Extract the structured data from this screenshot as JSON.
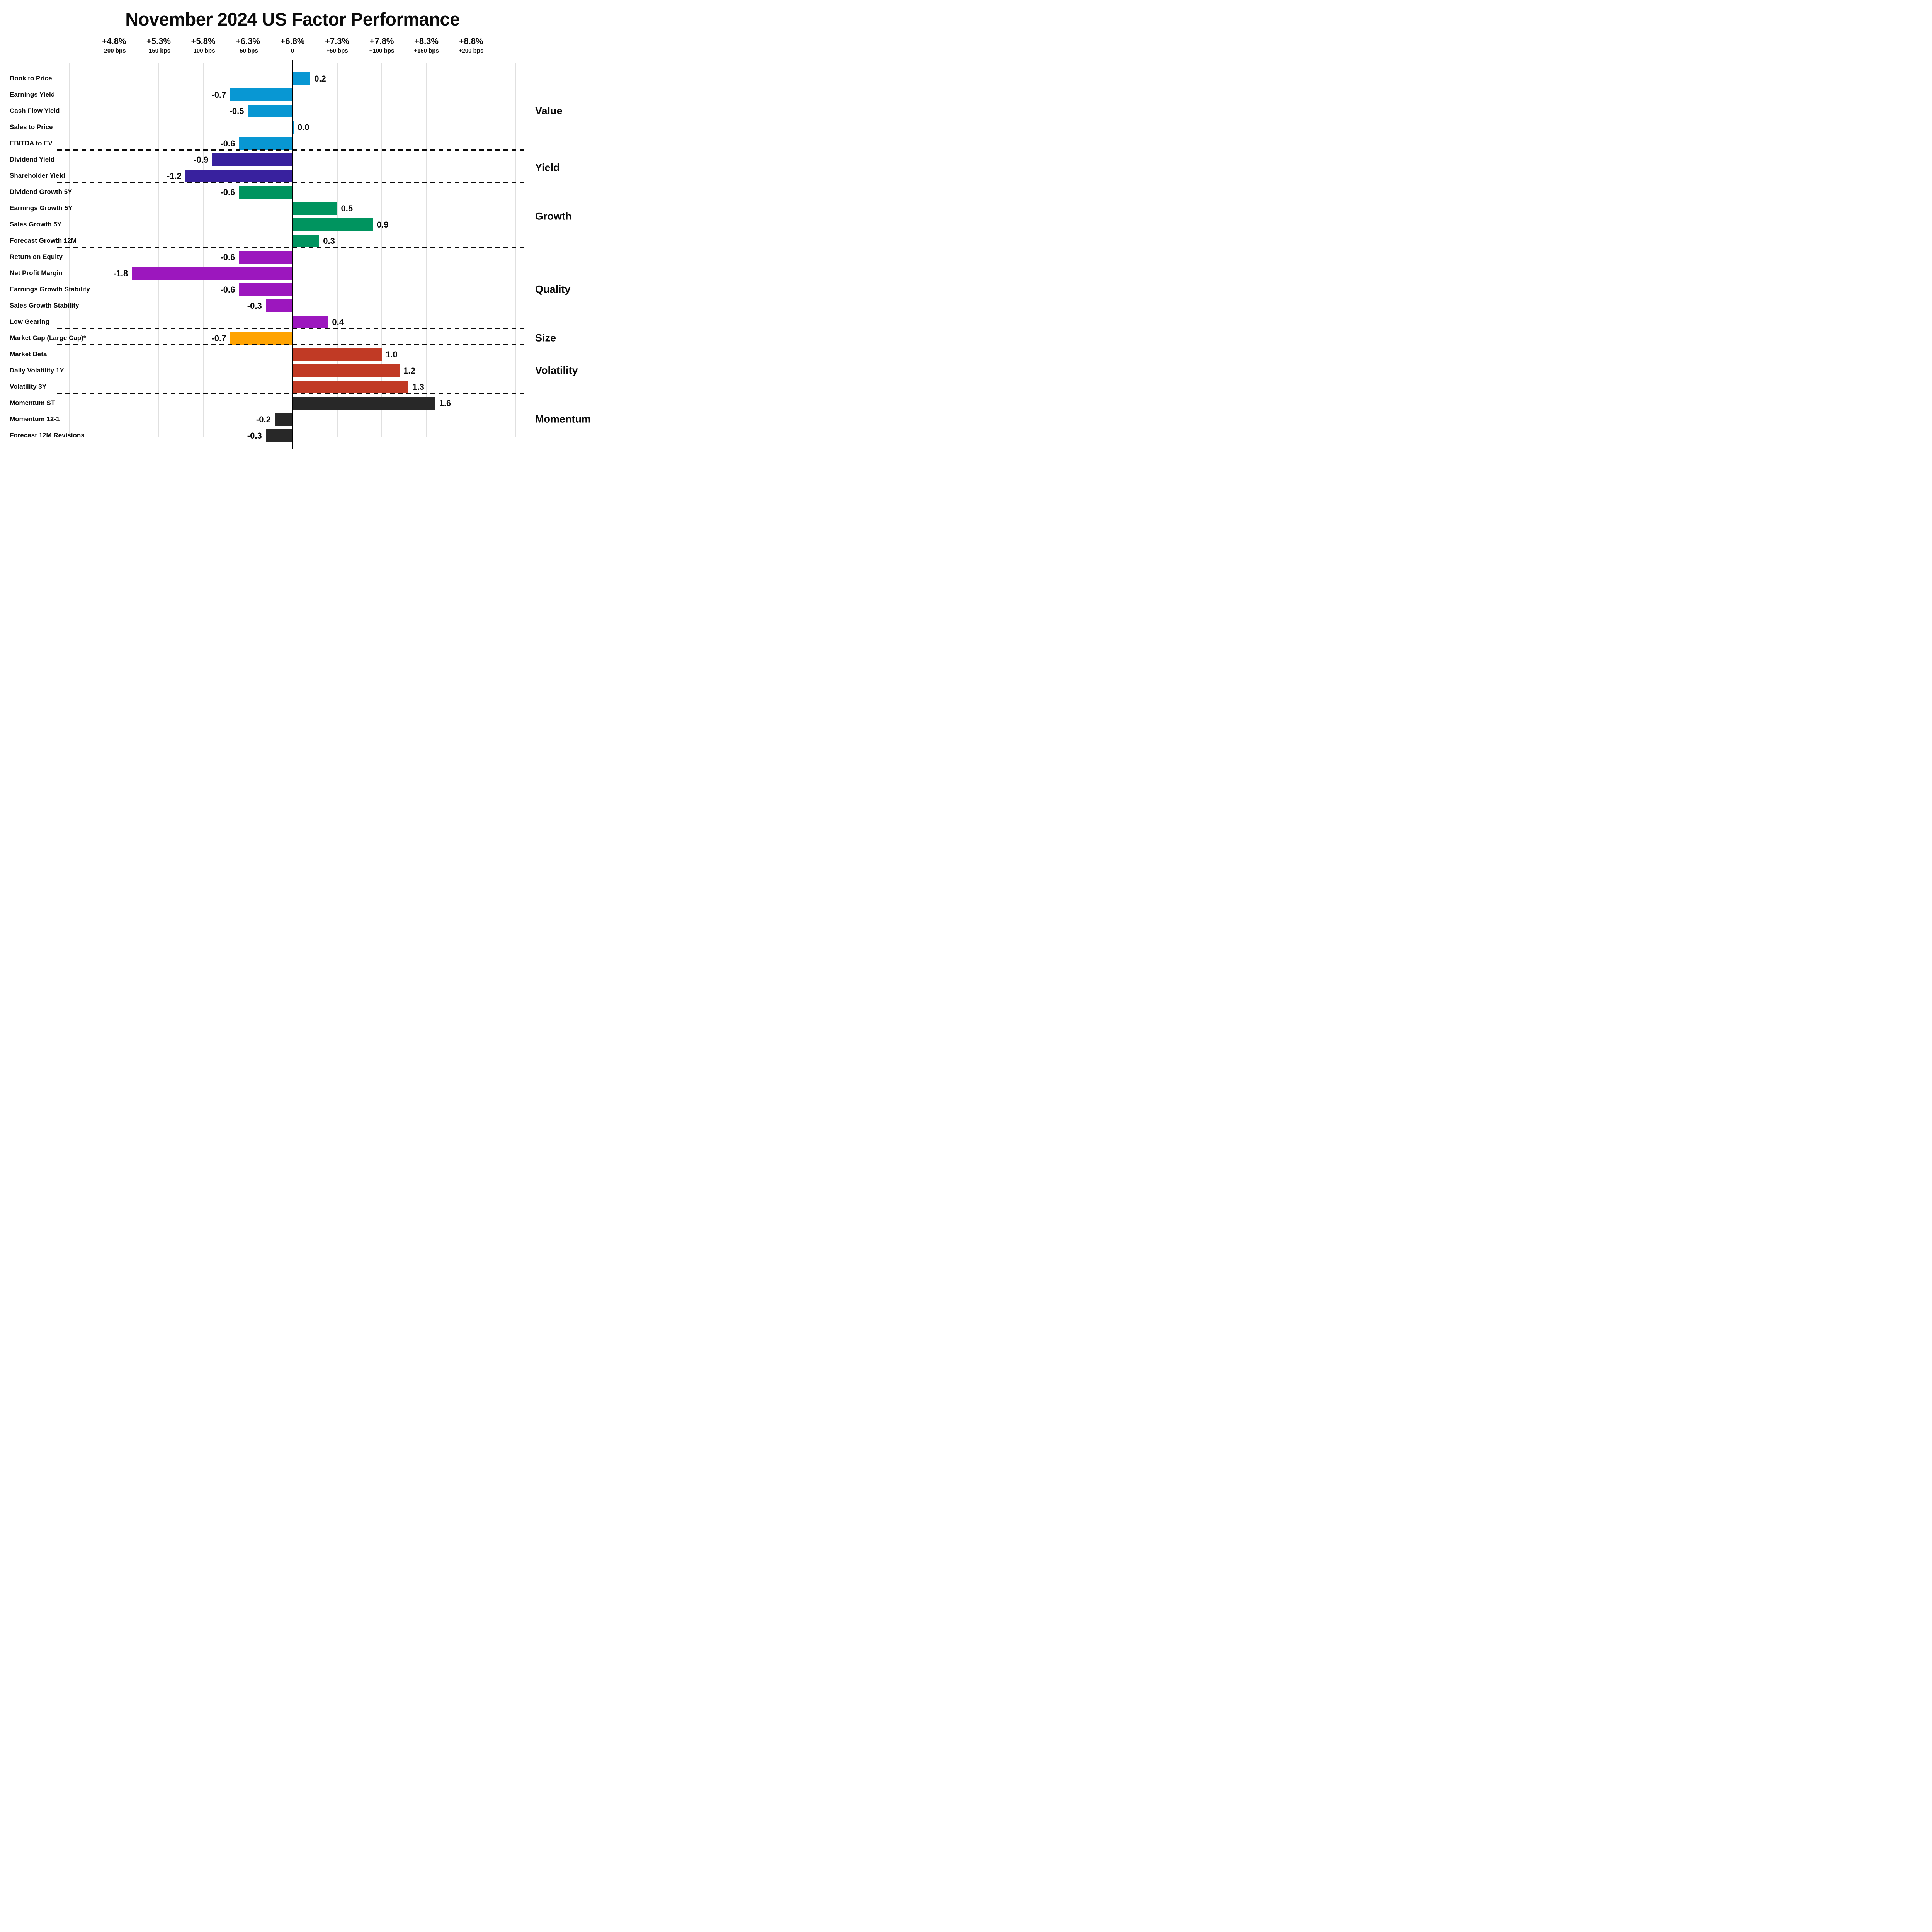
{
  "title": "November 2024 US Factor Performance",
  "axis_ticks": [
    {
      "pct": "+4.8%",
      "bps_label": "-200 bps",
      "bps": -200
    },
    {
      "pct": "+5.3%",
      "bps_label": "-150 bps",
      "bps": -150
    },
    {
      "pct": "+5.8%",
      "bps_label": "-100 bps",
      "bps": -100
    },
    {
      "pct": "+6.3%",
      "bps_label": "-50 bps",
      "bps": -50
    },
    {
      "pct": "+6.8%",
      "bps_label": "0",
      "bps": 0
    },
    {
      "pct": "+7.3%",
      "bps_label": "+50 bps",
      "bps": 50
    },
    {
      "pct": "+7.8%",
      "bps_label": "+100 bps",
      "bps": 100
    },
    {
      "pct": "+8.3%",
      "bps_label": "+150 bps",
      "bps": 150
    },
    {
      "pct": "+8.8%",
      "bps_label": "+200 bps",
      "bps": 200
    }
  ],
  "chart_data": {
    "type": "bar",
    "orientation": "horizontal",
    "title": "November 2024 US Factor Performance",
    "x_axis": {
      "top_row_percent": [
        "+4.8%",
        "+5.3%",
        "+5.8%",
        "+6.3%",
        "+6.8%",
        "+7.3%",
        "+7.8%",
        "+8.3%",
        "+8.8%"
      ],
      "bottom_row_bps": [
        "-200 bps",
        "-150 bps",
        "-100 bps",
        "-50 bps",
        "0",
        "+50 bps",
        "+100 bps",
        "+150 bps",
        "+200 bps"
      ],
      "zero_at_percent": "+6.8%",
      "tick_step_bps": 50,
      "range_bps": [
        -250,
        250
      ],
      "grid": true
    },
    "value_units": "percentage points (100 bps = 1.0)",
    "groups": [
      {
        "name": "Value",
        "color": "#0897D3",
        "factors": [
          {
            "label": "Book to Price",
            "value": 0.2,
            "value_label": "0.2"
          },
          {
            "label": "Earnings Yield",
            "value": -0.7,
            "value_label": "-0.7"
          },
          {
            "label": "Cash Flow Yield",
            "value": -0.5,
            "value_label": "-0.5"
          },
          {
            "label": "Sales to Price",
            "value": 0.0,
            "value_label": "0.0"
          },
          {
            "label": "EBITDA to EV",
            "value": -0.6,
            "value_label": "-0.6"
          }
        ]
      },
      {
        "name": "Yield",
        "color": "#38219E",
        "factors": [
          {
            "label": "Dividend Yield",
            "value": -0.9,
            "value_label": "-0.9"
          },
          {
            "label": "Shareholder Yield",
            "value": -1.2,
            "value_label": "-1.2"
          }
        ]
      },
      {
        "name": "Growth",
        "color": "#00945F",
        "factors": [
          {
            "label": "Dividend Growth 5Y",
            "value": -0.6,
            "value_label": "-0.6"
          },
          {
            "label": "Earnings Growth 5Y",
            "value": 0.5,
            "value_label": "0.5"
          },
          {
            "label": "Sales Growth 5Y",
            "value": 0.9,
            "value_label": "0.9"
          },
          {
            "label": "Forecast Growth 12M",
            "value": 0.3,
            "value_label": "0.3"
          }
        ]
      },
      {
        "name": "Quality",
        "color": "#9C17BE",
        "factors": [
          {
            "label": "Return on Equity",
            "value": -0.6,
            "value_label": "-0.6"
          },
          {
            "label": "Net Profit Margin",
            "value": -1.8,
            "value_label": "-1.8"
          },
          {
            "label": "Earnings Growth Stability",
            "value": -0.6,
            "value_label": "-0.6"
          },
          {
            "label": "Sales Growth Stability",
            "value": -0.3,
            "value_label": "-0.3"
          },
          {
            "label": "Low Gearing",
            "value": 0.4,
            "value_label": "0.4"
          }
        ]
      },
      {
        "name": "Size",
        "color": "#FFA301",
        "factors": [
          {
            "label": "Market Cap (Large Cap)*",
            "value": -0.7,
            "value_label": "-0.7"
          }
        ]
      },
      {
        "name": "Volatility",
        "color": "#C13A25",
        "factors": [
          {
            "label": "Market Beta",
            "value": 1.0,
            "value_label": "1.0"
          },
          {
            "label": "Daily Volatility 1Y",
            "value": 1.2,
            "value_label": "1.2"
          },
          {
            "label": "Volatility 3Y",
            "value": 1.3,
            "value_label": "1.3"
          }
        ]
      },
      {
        "name": "Momentum",
        "color": "#282828",
        "factors": [
          {
            "label": "Momentum ST",
            "value": 1.6,
            "value_label": "1.6"
          },
          {
            "label": "Momentum 12-1",
            "value": -0.2,
            "value_label": "-0.2"
          },
          {
            "label": "Forecast 12M Revisions",
            "value": -0.3,
            "value_label": "-0.3"
          }
        ]
      }
    ]
  }
}
